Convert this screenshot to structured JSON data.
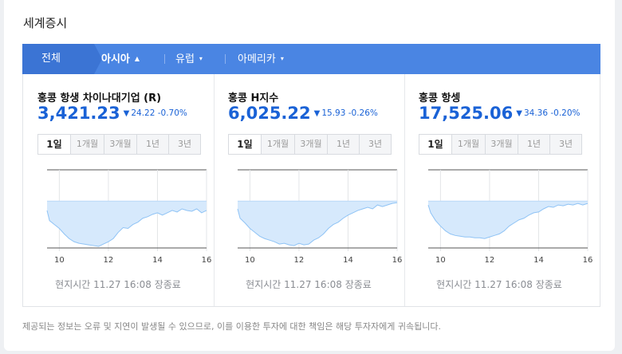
{
  "section_title": "세계증시",
  "tabs": [
    {
      "label": "전체",
      "dropdown": false,
      "active": false
    },
    {
      "label": "아시아",
      "dropdown": true,
      "active": true
    },
    {
      "label": "유럽",
      "dropdown": true,
      "active": false
    },
    {
      "label": "아메리카",
      "dropdown": true,
      "active": false
    }
  ],
  "caret_glyph": "▲",
  "cards": [
    {
      "name": "홍콩 항생 차이나대기업 (R)",
      "value": "3,421.23",
      "direction_glyph": "▼",
      "change": "24.22 -0.70%",
      "periods": [
        "1일",
        "1개월",
        "3개월",
        "1년",
        "3년"
      ],
      "time_label": "현지시간 11.27 16:08 장종료"
    },
    {
      "name": "홍콩 H지수",
      "value": "6,025.22",
      "direction_glyph": "▼",
      "change": "15.93 -0.26%",
      "periods": [
        "1일",
        "1개월",
        "3개월",
        "1년",
        "3년"
      ],
      "time_label": "현지시간 11.27 16:08 장종료"
    },
    {
      "name": "홍콩 항셍",
      "value": "17,525.06",
      "direction_glyph": "▼",
      "change": "34.36 -0.20%",
      "periods": [
        "1일",
        "1개월",
        "3개월",
        "1년",
        "3년"
      ],
      "time_label": "현지시간 11.27 16:08 장종료"
    }
  ],
  "chart_data": [
    {
      "type": "area",
      "x": [
        9.5,
        9.6,
        9.8,
        10.0,
        10.2,
        10.4,
        10.6,
        10.8,
        11.0,
        11.2,
        11.4,
        11.6,
        11.8,
        12.0,
        12.2,
        12.4,
        12.6,
        12.8,
        13.0,
        13.2,
        13.4,
        13.6,
        13.8,
        14.0,
        14.2,
        14.4,
        14.6,
        14.8,
        15.0,
        15.2,
        15.4,
        15.6,
        15.8,
        16.0
      ],
      "y": [
        0.48,
        0.35,
        0.3,
        0.25,
        0.18,
        0.12,
        0.08,
        0.06,
        0.05,
        0.04,
        0.03,
        0.02,
        0.05,
        0.08,
        0.12,
        0.2,
        0.26,
        0.25,
        0.3,
        0.33,
        0.38,
        0.4,
        0.43,
        0.45,
        0.42,
        0.45,
        0.48,
        0.46,
        0.5,
        0.48,
        0.47,
        0.5,
        0.45,
        0.48
      ],
      "baseline": 0.6,
      "xticks": [
        "10",
        "12",
        "14",
        "16"
      ],
      "xtick_values": [
        10,
        12,
        14,
        16
      ],
      "color": "#8fc3f5",
      "fill": "#d6e9fc"
    },
    {
      "type": "area",
      "x": [
        9.5,
        9.6,
        9.8,
        10.0,
        10.2,
        10.4,
        10.6,
        10.8,
        11.0,
        11.2,
        11.4,
        11.6,
        11.8,
        12.0,
        12.2,
        12.4,
        12.6,
        12.8,
        13.0,
        13.2,
        13.4,
        13.6,
        13.8,
        14.0,
        14.2,
        14.4,
        14.6,
        14.8,
        15.0,
        15.2,
        15.4,
        15.6,
        15.8,
        16.0
      ],
      "y": [
        0.5,
        0.38,
        0.32,
        0.25,
        0.2,
        0.15,
        0.12,
        0.1,
        0.08,
        0.05,
        0.06,
        0.04,
        0.03,
        0.06,
        0.04,
        0.05,
        0.1,
        0.13,
        0.18,
        0.25,
        0.3,
        0.33,
        0.38,
        0.42,
        0.45,
        0.48,
        0.5,
        0.52,
        0.5,
        0.55,
        0.53,
        0.55,
        0.57,
        0.58
      ],
      "baseline": 0.6,
      "xticks": [
        "10",
        "12",
        "14",
        "16"
      ],
      "xtick_values": [
        10,
        12,
        14,
        16
      ],
      "color": "#8fc3f5",
      "fill": "#d6e9fc"
    },
    {
      "type": "area",
      "x": [
        9.5,
        9.6,
        9.8,
        10.0,
        10.2,
        10.4,
        10.6,
        10.8,
        11.0,
        11.2,
        11.4,
        11.6,
        11.8,
        12.0,
        12.2,
        12.4,
        12.6,
        12.8,
        13.0,
        13.2,
        13.4,
        13.6,
        13.8,
        14.0,
        14.2,
        14.4,
        14.6,
        14.8,
        15.0,
        15.2,
        15.4,
        15.6,
        15.8,
        16.0
      ],
      "y": [
        0.55,
        0.45,
        0.35,
        0.28,
        0.22,
        0.18,
        0.16,
        0.15,
        0.14,
        0.14,
        0.13,
        0.13,
        0.12,
        0.14,
        0.16,
        0.18,
        0.22,
        0.28,
        0.32,
        0.36,
        0.38,
        0.42,
        0.45,
        0.46,
        0.5,
        0.53,
        0.52,
        0.55,
        0.54,
        0.56,
        0.55,
        0.57,
        0.55,
        0.57
      ],
      "baseline": 0.6,
      "xticks": [
        "10",
        "12",
        "14",
        "16"
      ],
      "xtick_values": [
        10,
        12,
        14,
        16
      ],
      "color": "#8fc3f5",
      "fill": "#d6e9fc"
    }
  ],
  "disclaimer": "제공되는 정보는 오류 및 지연이 발생될 수 있으므로, 이를 이용한 투자에 대한 책임은 해당 투자자에게 귀속됩니다."
}
